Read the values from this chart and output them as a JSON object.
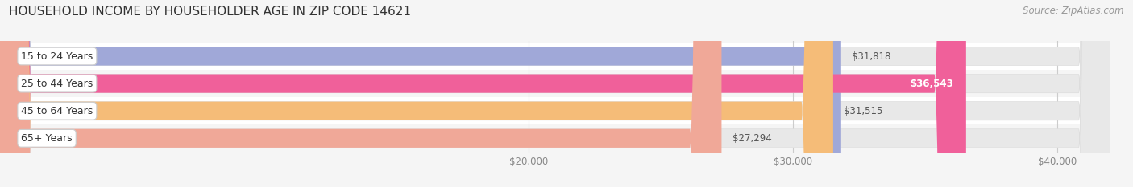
{
  "title": "HOUSEHOLD INCOME BY HOUSEHOLDER AGE IN ZIP CODE 14621",
  "source": "Source: ZipAtlas.com",
  "categories": [
    "15 to 24 Years",
    "25 to 44 Years",
    "45 to 64 Years",
    "65+ Years"
  ],
  "values": [
    31818,
    36543,
    31515,
    27294
  ],
  "bar_colors": [
    "#a0a8d8",
    "#f0609a",
    "#f5bc78",
    "#f0a898"
  ],
  "bar_edge_colors": [
    "#a0a8d8",
    "#f0609a",
    "#f5bc78",
    "#f0a898"
  ],
  "row_bg_colors": [
    "#ffffff",
    "#f5f5f5",
    "#ffffff",
    "#f5f5f5"
  ],
  "value_labels": [
    "$31,818",
    "$36,543",
    "$31,515",
    "$27,294"
  ],
  "value_label_inside": [
    false,
    true,
    false,
    false
  ],
  "value_label_color_outside": "#555555",
  "value_label_color_inside": "#ffffff",
  "xmin": 0,
  "xmax": 42000,
  "xticks": [
    20000,
    30000,
    40000
  ],
  "xticklabels": [
    "$20,000",
    "$30,000",
    "$40,000"
  ],
  "background_color": "#f5f5f5",
  "title_fontsize": 11,
  "source_fontsize": 8.5,
  "tick_fontsize": 8.5,
  "label_fontsize": 9,
  "value_fontsize": 8.5,
  "bar_height": 0.68
}
